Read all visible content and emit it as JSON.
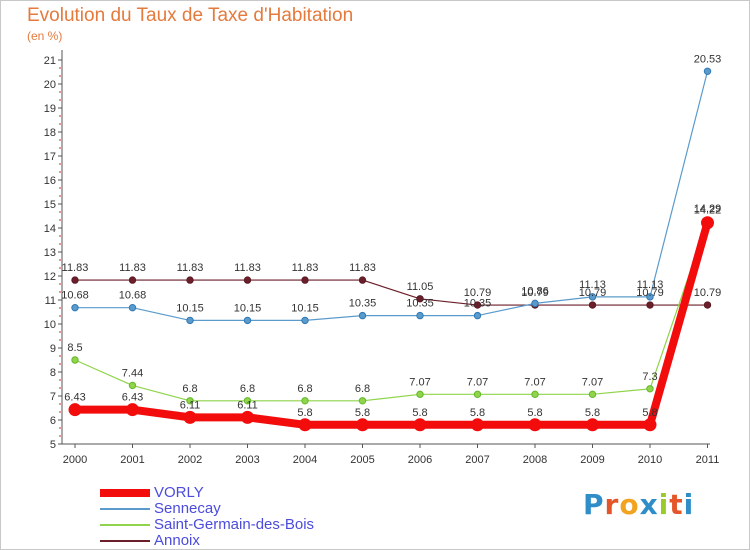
{
  "header": {
    "title": "Evolution du Taux de Taxe d'Habitation",
    "unit": "(en %)"
  },
  "logo": {
    "text": "Proxiti",
    "colors": [
      "#2f8ec8",
      "#e4562a",
      "#f2a420",
      "#2f8ec8",
      "#9acb2a",
      "#e4562a",
      "#2f8ec8"
    ]
  },
  "chart_data": {
    "type": "line",
    "title": "Evolution du Taux de Taxe d'Habitation",
    "ylabel": "(en %)",
    "xlabel": "",
    "x": [
      "2000",
      "2001",
      "2002",
      "2003",
      "2004",
      "2005",
      "2006",
      "2007",
      "2008",
      "2009",
      "2010",
      "2011"
    ],
    "ylim": [
      5,
      21
    ],
    "yticks": [
      5,
      6,
      7,
      8,
      9,
      10,
      11,
      12,
      13,
      14,
      15,
      16,
      17,
      18,
      19,
      20,
      21
    ],
    "grid": false,
    "legend_position": "bottom-left",
    "series": [
      {
        "name": "Annoix",
        "color": "#6b1f2a",
        "values": [
          11.83,
          11.83,
          11.83,
          11.83,
          11.83,
          11.83,
          11.05,
          10.79,
          10.79,
          10.79,
          10.79,
          10.79
        ],
        "labels": [
          "11.83",
          "11.83",
          "11.83",
          "11.83",
          "11.83",
          "11.83",
          "11.05",
          "10.79",
          "10.79",
          "10.79",
          "10.79",
          "10.79"
        ]
      },
      {
        "name": "Sennecay",
        "color": "#5b9bcc",
        "values": [
          10.68,
          10.68,
          10.15,
          10.15,
          10.15,
          10.35,
          10.35,
          10.35,
          10.86,
          11.13,
          11.13,
          20.53
        ],
        "labels": [
          "10.68",
          "10.68",
          "10.15",
          "10.15",
          "10.15",
          "10.35",
          "10.35",
          "10.35",
          "10.86",
          "11.13",
          "11.13",
          "20.53"
        ]
      },
      {
        "name": "Saint-Germain-des-Bois",
        "color": "#8fd44a",
        "values": [
          8.5,
          7.44,
          6.8,
          6.8,
          6.8,
          6.8,
          7.07,
          7.07,
          7.07,
          7.07,
          7.3,
          14.29
        ],
        "labels": [
          "8.5",
          "7.44",
          "6.8",
          "6.8",
          "6.8",
          "6.8",
          "7.07",
          "7.07",
          "7.07",
          "7.07",
          "7.3",
          "14.29"
        ]
      },
      {
        "name": "VORLY",
        "color": "#f20c0c",
        "values": [
          6.43,
          6.43,
          6.11,
          6.11,
          5.8,
          5.8,
          5.8,
          5.8,
          5.8,
          5.8,
          5.8,
          14.22
        ],
        "labels": [
          "6.43",
          "6.43",
          "6.11",
          "6.11",
          "5.8",
          "5.8",
          "5.8",
          "5.8",
          "5.8",
          "5.8",
          "5.8",
          "14.22"
        ]
      }
    ],
    "legend_order": [
      "VORLY",
      "Sennecay",
      "Saint-Germain-des-Bois",
      "Annoix"
    ]
  }
}
